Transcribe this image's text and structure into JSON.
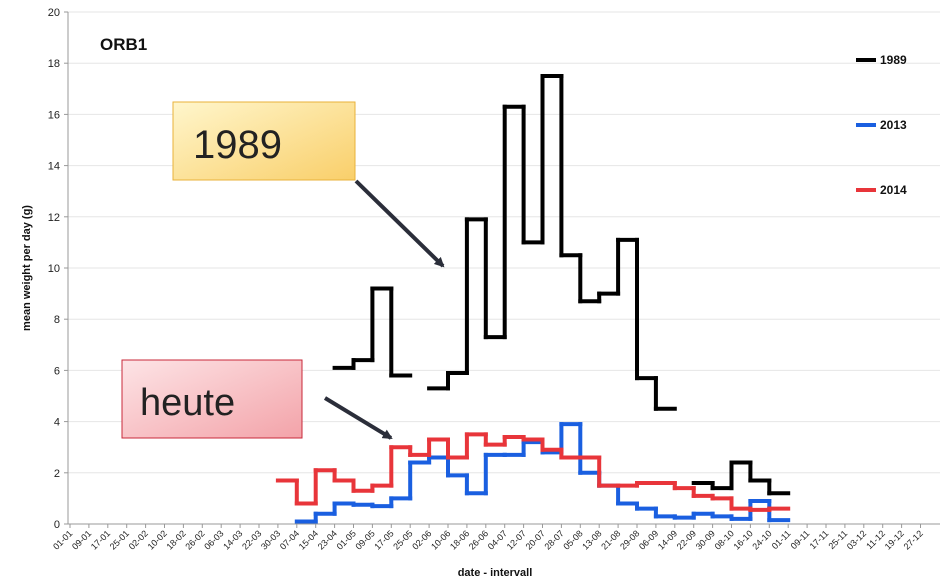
{
  "chart_data": {
    "type": "step-line",
    "title": "ORB1",
    "y_label": "mean weight per day  (g)",
    "x_label": "date - intervall",
    "categories": [
      "01-01",
      "09-01",
      "17-01",
      "25-01",
      "02-02",
      "10-02",
      "18-02",
      "26-02",
      "06-03",
      "14-03",
      "22-03",
      "30-03",
      "07-04",
      "15-04",
      "23-04",
      "01-05",
      "09-05",
      "17-05",
      "25-05",
      "02-06",
      "10-06",
      "18-06",
      "26-06",
      "04-07",
      "12-07",
      "20-07",
      "28-07",
      "05-08",
      "13-08",
      "21-08",
      "29-08",
      "06-09",
      "14-09",
      "22-09",
      "30-09",
      "08-10",
      "16-10",
      "24-10",
      "01-11",
      "09-11",
      "17-11",
      "25-11",
      "03-12",
      "11-12",
      "19-12",
      "27-12"
    ],
    "series": [
      {
        "name": "1989",
        "color": "#000000",
        "values": [
          null,
          null,
          null,
          null,
          null,
          null,
          null,
          null,
          null,
          null,
          null,
          null,
          null,
          null,
          6.1,
          6.4,
          9.2,
          5.8,
          null,
          5.3,
          5.9,
          11.9,
          7.3,
          16.3,
          11,
          17.5,
          10.5,
          8.7,
          9.0,
          11.1,
          5.7,
          4.5,
          null,
          1.6,
          1.4,
          2.4,
          1.7,
          1.2,
          null,
          null,
          null,
          null,
          null,
          null,
          null,
          null
        ]
      },
      {
        "name": "2013",
        "color": "#1a5fe0",
        "values": [
          null,
          null,
          null,
          null,
          null,
          null,
          null,
          null,
          null,
          null,
          null,
          null,
          0.1,
          0.4,
          0.8,
          0.75,
          0.7,
          1.0,
          2.4,
          2.6,
          1.9,
          1.2,
          2.7,
          2.7,
          3.2,
          2.8,
          3.9,
          2.0,
          1.5,
          0.8,
          0.6,
          0.3,
          0.25,
          0.4,
          0.3,
          0.2,
          0.9,
          0.15,
          null,
          null,
          null,
          null,
          null,
          null,
          null,
          null
        ]
      },
      {
        "name": "2014",
        "color": "#e8353a",
        "values": [
          null,
          null,
          null,
          null,
          null,
          null,
          null,
          null,
          null,
          null,
          null,
          1.7,
          0.8,
          2.1,
          1.7,
          1.3,
          1.5,
          3.0,
          2.7,
          3.3,
          2.6,
          3.5,
          3.1,
          3.4,
          3.3,
          2.9,
          2.6,
          2.6,
          1.5,
          1.5,
          1.6,
          1.6,
          1.4,
          1.1,
          1.0,
          0.6,
          0.55,
          0.6,
          null,
          null,
          null,
          null,
          null,
          null,
          null,
          null
        ]
      }
    ],
    "ylim": [
      0,
      20
    ],
    "yticks": [
      0,
      2,
      4,
      6,
      8,
      10,
      12,
      14,
      16,
      18,
      20
    ],
    "grid": true,
    "legend": "right",
    "annotations": [
      "1989",
      "heute"
    ]
  }
}
